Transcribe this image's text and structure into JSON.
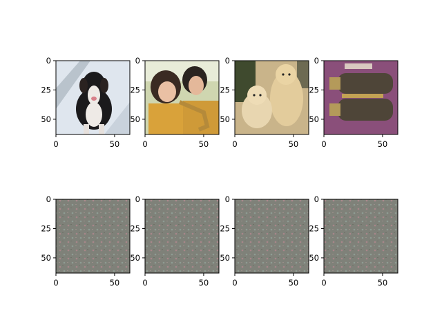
{
  "chart_data": {
    "type": "image-grid",
    "rows": 2,
    "cols": 4,
    "title": "",
    "panels": [
      {
        "row": 0,
        "col": 0,
        "content": "photo of Bernese mountain dog",
        "xlim": [
          0,
          63
        ],
        "ylim": [
          63,
          0
        ],
        "xticks": [
          "0",
          "50"
        ],
        "yticks": [
          "0",
          "25",
          "50"
        ]
      },
      {
        "row": 0,
        "col": 1,
        "content": "photo of two girls, one playing saxophone",
        "xlim": [
          0,
          63
        ],
        "ylim": [
          63,
          0
        ],
        "xticks": [
          "0",
          "50"
        ],
        "yticks": [
          "0",
          "25",
          "50"
        ]
      },
      {
        "row": 0,
        "col": 2,
        "content": "photo of two poodles",
        "xlim": [
          0,
          63
        ],
        "ylim": [
          63,
          0
        ],
        "xticks": [
          "0",
          "50"
        ],
        "yticks": [
          "0",
          "25",
          "50"
        ]
      },
      {
        "row": 0,
        "col": 3,
        "content": "photo of two dark objects on magenta background",
        "xlim": [
          0,
          63
        ],
        "ylim": [
          63,
          0
        ],
        "xticks": [
          "0",
          "50"
        ],
        "yticks": [
          "0",
          "25",
          "50"
        ]
      },
      {
        "row": 1,
        "col": 0,
        "content": "grey noise pattern",
        "xlim": [
          0,
          63
        ],
        "ylim": [
          63,
          0
        ],
        "xticks": [
          "0",
          "50"
        ],
        "yticks": [
          "0",
          "25",
          "50"
        ]
      },
      {
        "row": 1,
        "col": 1,
        "content": "grey noise pattern",
        "xlim": [
          0,
          63
        ],
        "ylim": [
          63,
          0
        ],
        "xticks": [
          "0",
          "50"
        ],
        "yticks": [
          "0",
          "25",
          "50"
        ]
      },
      {
        "row": 1,
        "col": 2,
        "content": "grey noise pattern",
        "xlim": [
          0,
          63
        ],
        "ylim": [
          63,
          0
        ],
        "xticks": [
          "0",
          "50"
        ],
        "yticks": [
          "0",
          "25",
          "50"
        ]
      },
      {
        "row": 1,
        "col": 3,
        "content": "grey noise pattern",
        "xlim": [
          0,
          63
        ],
        "ylim": [
          63,
          0
        ],
        "xticks": [
          "0",
          "50"
        ],
        "yticks": [
          "0",
          "25",
          "50"
        ]
      }
    ]
  },
  "colors": {
    "noise_base": "#7f8179",
    "noise_dot": "#a8868a",
    "dog_bg": "#dfe6ee",
    "girls_bg": "#cfd6b0",
    "poodle_bg": "#3f4a2e",
    "objects_bg": "#8a4f7a"
  }
}
